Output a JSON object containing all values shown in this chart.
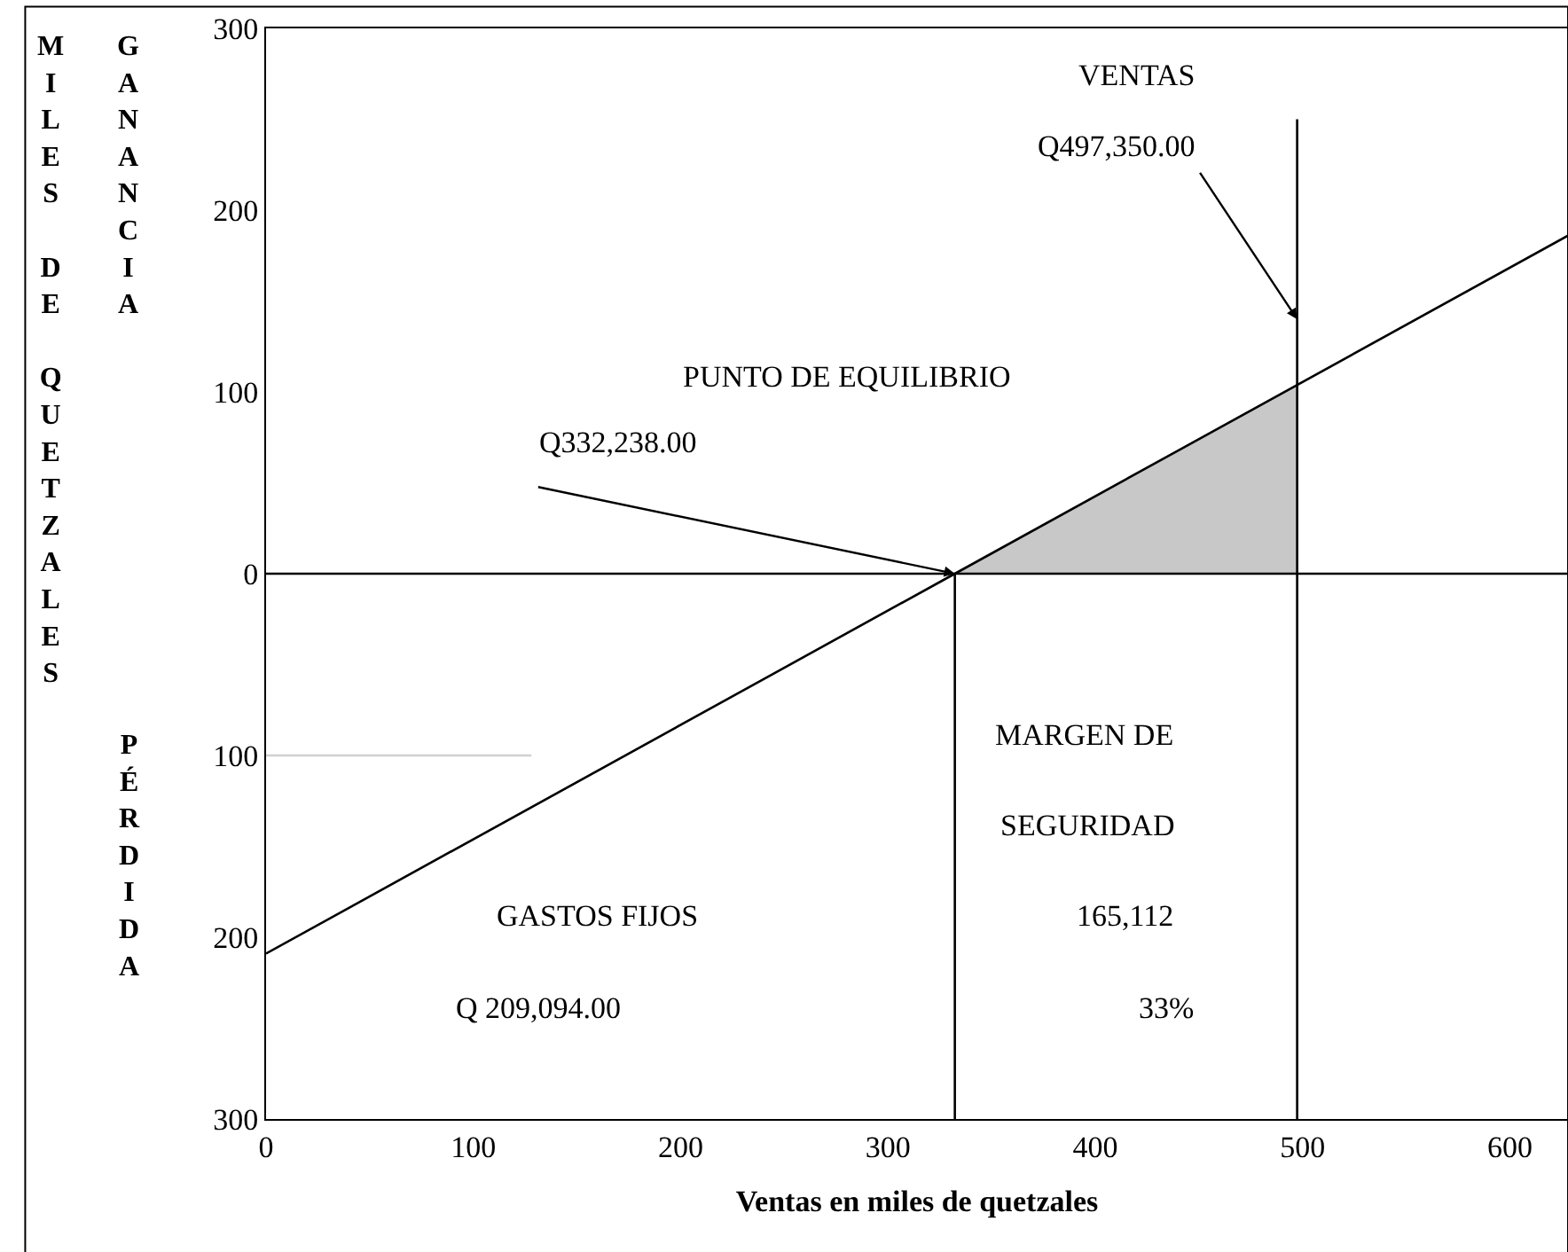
{
  "chart_data": {
    "type": "line",
    "xlabel": "Ventas en miles de quetzales",
    "ylabel": "MILES DE QUETZALES",
    "xlim": [
      0,
      628
    ],
    "xticks": [
      0,
      100,
      200,
      300,
      400,
      500,
      600
    ],
    "ylim": [
      -300,
      300
    ],
    "yticks": [
      {
        "value": -300,
        "label": "300"
      },
      {
        "value": -200,
        "label": "200"
      },
      {
        "value": -100,
        "label": "100"
      },
      0,
      100,
      200,
      300
    ],
    "series": [
      {
        "type": "area",
        "color": "#c8c8c8",
        "x": [
          332.238,
          497.35
        ],
        "values": [
          0,
          104
        ]
      },
      {
        "color": "#000000",
        "x": [
          0,
          332.238,
          628
        ],
        "values": [
          -209,
          0,
          186
        ]
      },
      {
        "color": "#000000",
        "x": [
          332.238,
          332.238
        ],
        "values": [
          -300,
          0
        ]
      },
      {
        "color": "#000000",
        "x": [
          497.35,
          497.35
        ],
        "values": [
          -300,
          250
        ]
      },
      {
        "color": "#d0d0d0",
        "x": [
          0,
          128
        ],
        "values": [
          -100,
          -100
        ]
      }
    ],
    "ref_lines": [
      {
        "axis": "y",
        "value": 0,
        "color": "#000000"
      }
    ],
    "annotations": [
      "VENTAS",
      {
        "text": "Q497,350.00",
        "x": 497.35,
        "y": 140
      },
      "PUNTO DE EQUILIBRIO",
      {
        "text": "Q332,238.00",
        "x": 332.238,
        "y": 0
      },
      "MARGEN DE",
      "SEGURIDAD",
      "165,112",
      "33%",
      "GASTOS FIJOS",
      "Q 209,094.00",
      "GANANCIA",
      "PÉRDIDA"
    ]
  }
}
